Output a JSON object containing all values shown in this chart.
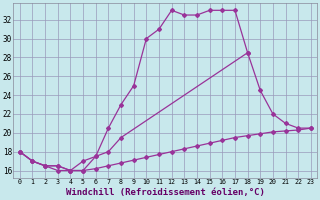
{
  "background_color": "#c8e8ec",
  "grid_color": "#9999bb",
  "line_color": "#993399",
  "xlabel": "Windchill (Refroidissement éolien,°C)",
  "ylim": [
    15.2,
    33.8
  ],
  "xlim": [
    -0.5,
    23.5
  ],
  "yticks": [
    16,
    18,
    20,
    22,
    24,
    26,
    28,
    30,
    32
  ],
  "xtick_labels": [
    "0",
    "1",
    "2",
    "3",
    "4",
    "5",
    "6",
    "7",
    "8",
    "9",
    "10",
    "11",
    "12",
    "13",
    "14",
    "15",
    "16",
    "17",
    "18",
    "19",
    "20",
    "21",
    "22",
    "23"
  ],
  "line1_x": [
    0,
    1,
    2,
    3,
    4,
    5,
    6,
    7,
    8,
    9,
    10,
    11,
    12,
    13,
    14,
    15,
    16,
    17,
    18
  ],
  "line1_y": [
    18,
    17,
    16.5,
    16,
    16,
    16,
    17.5,
    20.5,
    23.0,
    25.0,
    30.0,
    31.0,
    33.0,
    32.5,
    32.5,
    33.0,
    33.0,
    33.0,
    28.5
  ],
  "line2_x": [
    0,
    1,
    2,
    3,
    4,
    5,
    6,
    7,
    8,
    18,
    19,
    20,
    21,
    22,
    23
  ],
  "line2_y": [
    18,
    17,
    16.5,
    16.5,
    16.0,
    17.0,
    17.5,
    18.0,
    19.5,
    28.5,
    24.5,
    22.0,
    21.0,
    20.5,
    20.5
  ],
  "line3_x": [
    0,
    1,
    2,
    3,
    4,
    5,
    6,
    7,
    8,
    9,
    10,
    11,
    12,
    13,
    14,
    15,
    16,
    17,
    18,
    19,
    20,
    21,
    22,
    23
  ],
  "line3_y": [
    18,
    17,
    16.5,
    16.5,
    16.0,
    16.0,
    16.2,
    16.5,
    16.8,
    17.1,
    17.4,
    17.7,
    18.0,
    18.3,
    18.6,
    18.9,
    19.2,
    19.5,
    19.7,
    19.9,
    20.1,
    20.2,
    20.3,
    20.5
  ]
}
